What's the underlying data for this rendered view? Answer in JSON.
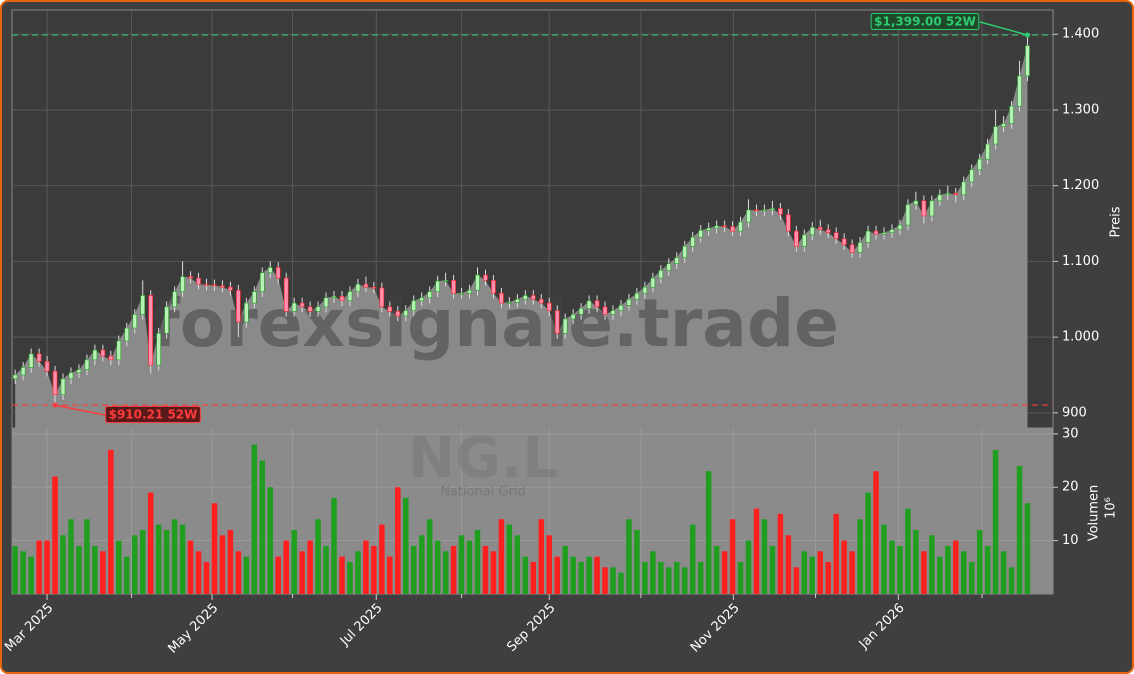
{
  "chart_data": {
    "type": "candlestick",
    "watermark": "forexsignale.trade",
    "symbol": "NG.L",
    "company_name": "National Grid",
    "ylabel": "Preis",
    "volume_label": "Volumen",
    "volume_scale_label": "10⁶",
    "up_color": "#1f9e1f",
    "down_color": "#ff1f1f",
    "area_color": "#8a8a8a",
    "grid": true,
    "xlim": [
      -0.4,
      130.2
    ],
    "xticks": [
      {
        "value": 4,
        "label": "Mar 2025"
      },
      {
        "value": 24.7,
        "label": "May 2025"
      },
      {
        "value": 45.3,
        "label": "Jul 2025"
      },
      {
        "value": 67,
        "label": "Sep 2025"
      },
      {
        "value": 90.1,
        "label": "Nov 2025"
      },
      {
        "value": 110.8,
        "label": "Jan 2026"
      }
    ],
    "xticks_minor": [
      14.6,
      34.8,
      56,
      78.5,
      100.4,
      121.3
    ],
    "ylim": [
      880,
      1432
    ],
    "yticks": [
      {
        "value": 900,
        "label": "900"
      },
      {
        "value": 1000,
        "label": "1.000"
      },
      {
        "value": 1100,
        "label": "1.100"
      },
      {
        "value": 1200,
        "label": "1.200"
      },
      {
        "value": 1300,
        "label": "1.300"
      },
      {
        "value": 1400,
        "label": "1.400"
      }
    ],
    "volume_ylim": [
      0,
      31.1
    ],
    "volume_yticks": [
      10,
      20,
      30
    ],
    "annotations": [
      {
        "value": 1399,
        "label": "$1,399.00 52W",
        "color": "#2ecc71"
      },
      {
        "value": 910.21,
        "label": "$910.21 52W",
        "color": "#ff3b3b"
      }
    ],
    "open": [
      945,
      950,
      960,
      978,
      968,
      955,
      924,
      945,
      953,
      957,
      970,
      983,
      975,
      970,
      995,
      1012,
      1030,
      1055,
      963,
      1005,
      1040,
      1060,
      1080,
      1078,
      1070,
      1069,
      1068,
      1066,
      1062,
      1020,
      1045,
      1060,
      1085,
      1092,
      1078,
      1034,
      1045,
      1040,
      1034,
      1040,
      1052,
      1054,
      1048,
      1060,
      1070,
      1066,
      1065,
      1040,
      1034,
      1028,
      1035,
      1048,
      1052,
      1060,
      1074,
      1075,
      1058,
      1058,
      1062,
      1082,
      1075,
      1058,
      1045,
      1046,
      1050,
      1055,
      1050,
      1045,
      1035,
      1005,
      1024,
      1030,
      1038,
      1048,
      1040,
      1030,
      1035,
      1042,
      1050,
      1058,
      1066,
      1078,
      1088,
      1097,
      1105,
      1120,
      1132,
      1141,
      1144,
      1147,
      1146,
      1140,
      1152,
      1168,
      1167,
      1168,
      1170,
      1162,
      1140,
      1120,
      1135,
      1145,
      1142,
      1138,
      1130,
      1122,
      1112,
      1125,
      1140,
      1136,
      1138,
      1142,
      1148,
      1175,
      1180,
      1160,
      1180,
      1188,
      1190,
      1188,
      1205,
      1221,
      1235,
      1255,
      1278,
      1282,
      1305,
      1345
    ],
    "high": [
      957,
      967,
      985,
      985,
      975,
      962,
      952,
      960,
      964,
      977,
      990,
      990,
      982,
      1002,
      1019,
      1037,
      1075,
      1062,
      1012,
      1047,
      1067,
      1100,
      1087,
      1085,
      1077,
      1076,
      1075,
      1073,
      1069,
      1052,
      1067,
      1092,
      1100,
      1099,
      1085,
      1052,
      1052,
      1047,
      1047,
      1059,
      1061,
      1061,
      1067,
      1077,
      1080,
      1073,
      1072,
      1047,
      1041,
      1042,
      1055,
      1059,
      1067,
      1081,
      1085,
      1082,
      1065,
      1069,
      1092,
      1089,
      1082,
      1065,
      1053,
      1057,
      1062,
      1062,
      1057,
      1052,
      1042,
      1031,
      1037,
      1045,
      1055,
      1055,
      1047,
      1042,
      1049,
      1057,
      1065,
      1073,
      1085,
      1095,
      1104,
      1112,
      1127,
      1139,
      1148,
      1151,
      1154,
      1154,
      1153,
      1159,
      1182,
      1175,
      1175,
      1180,
      1177,
      1169,
      1147,
      1142,
      1152,
      1155,
      1149,
      1145,
      1137,
      1129,
      1132,
      1147,
      1147,
      1145,
      1149,
      1155,
      1182,
      1192,
      1187,
      1187,
      1195,
      1200,
      1197,
      1212,
      1228,
      1242,
      1262,
      1300,
      1292,
      1312,
      1365,
      1399
    ],
    "low": [
      938,
      943,
      953,
      961,
      948,
      910.21,
      917,
      938,
      946,
      950,
      963,
      968,
      963,
      963,
      988,
      1005,
      1023,
      952,
      956,
      998,
      1033,
      1053,
      1071,
      1063,
      1062,
      1061,
      1059,
      1055,
      1000,
      1013,
      1038,
      1053,
      1078,
      1071,
      1027,
      1027,
      1033,
      1027,
      1027,
      1033,
      1045,
      1041,
      1041,
      1053,
      1059,
      1058,
      1033,
      1027,
      1021,
      1021,
      1028,
      1041,
      1045,
      1053,
      1067,
      1051,
      1051,
      1051,
      1055,
      1068,
      1051,
      1038,
      1038,
      1039,
      1043,
      1043,
      1038,
      1028,
      998,
      998,
      1017,
      1023,
      1031,
      1033,
      1023,
      1023,
      1028,
      1035,
      1043,
      1051,
      1059,
      1071,
      1081,
      1090,
      1098,
      1113,
      1125,
      1134,
      1137,
      1139,
      1133,
      1133,
      1145,
      1160,
      1160,
      1161,
      1155,
      1133,
      1113,
      1113,
      1128,
      1135,
      1131,
      1123,
      1115,
      1105,
      1105,
      1118,
      1129,
      1129,
      1131,
      1135,
      1141,
      1168,
      1150,
      1153,
      1173,
      1181,
      1178,
      1181,
      1198,
      1214,
      1228,
      1248,
      1271,
      1275,
      1298,
      1338
    ],
    "close": [
      950,
      960,
      978,
      968,
      955,
      924,
      945,
      953,
      957,
      970,
      983,
      975,
      970,
      995,
      1012,
      1030,
      1055,
      963,
      1005,
      1040,
      1060,
      1080,
      1078,
      1070,
      1069,
      1068,
      1066,
      1062,
      1020,
      1045,
      1060,
      1085,
      1092,
      1078,
      1034,
      1045,
      1040,
      1034,
      1040,
      1052,
      1054,
      1048,
      1060,
      1070,
      1066,
      1065,
      1040,
      1034,
      1028,
      1035,
      1048,
      1052,
      1060,
      1074,
      1075,
      1058,
      1058,
      1062,
      1082,
      1075,
      1058,
      1045,
      1046,
      1050,
      1055,
      1050,
      1045,
      1035,
      1005,
      1024,
      1030,
      1038,
      1048,
      1040,
      1030,
      1035,
      1042,
      1050,
      1058,
      1066,
      1078,
      1088,
      1097,
      1105,
      1120,
      1132,
      1141,
      1144,
      1147,
      1146,
      1140,
      1152,
      1168,
      1167,
      1168,
      1170,
      1162,
      1140,
      1120,
      1135,
      1145,
      1142,
      1138,
      1130,
      1122,
      1112,
      1125,
      1140,
      1136,
      1138,
      1142,
      1148,
      1175,
      1180,
      1160,
      1180,
      1188,
      1190,
      1188,
      1205,
      1221,
      1235,
      1255,
      1278,
      1282,
      1305,
      1345,
      1385
    ],
    "volume": [
      9,
      8,
      7,
      10,
      10,
      22,
      11,
      14,
      9,
      14,
      9,
      8,
      27,
      10,
      7,
      11,
      12,
      19,
      13,
      12,
      14,
      13,
      10,
      8,
      6,
      17,
      11,
      12,
      8,
      7,
      28,
      25,
      20,
      7,
      10,
      12,
      8,
      10,
      14,
      9,
      18,
      7,
      6,
      8,
      10,
      9,
      13,
      7,
      20,
      18,
      9,
      11,
      14,
      10,
      8,
      9,
      11,
      10,
      12,
      9,
      8,
      14,
      13,
      11,
      7,
      6,
      14,
      11,
      7,
      9,
      7,
      6,
      7,
      7,
      5,
      5,
      4,
      14,
      12,
      6,
      8,
      6,
      5,
      6,
      5,
      13,
      6,
      23,
      9,
      8,
      14,
      6,
      10,
      16,
      14,
      9,
      15,
      11,
      5,
      8,
      7,
      8,
      6,
      15,
      10,
      8,
      14,
      19,
      23,
      13,
      10,
      9,
      16,
      12,
      8,
      11,
      7,
      9,
      10,
      8,
      6,
      12,
      9,
      27,
      8,
      5,
      24,
      17
    ]
  }
}
